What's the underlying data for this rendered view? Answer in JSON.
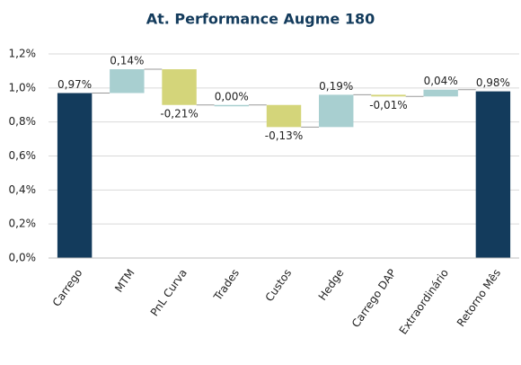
{
  "chart_data": {
    "type": "waterfall",
    "title": "At. Performance Augme 180",
    "categories": [
      "Carrego",
      "MTM",
      "PnL Curva",
      "Trades",
      "Custos",
      "Hedge",
      "Carrego DAP",
      "Extraordinário",
      "Retorno Mês"
    ],
    "values": [
      0.97,
      0.14,
      -0.21,
      0.0,
      -0.13,
      0.19,
      -0.01,
      0.04,
      0.98
    ],
    "value_labels": [
      "0,97%",
      "0,14%",
      "-0,21%",
      "0,00%",
      "-0,13%",
      "0,19%",
      "-0,01%",
      "0,04%",
      "0,98%"
    ],
    "totals": [
      true,
      false,
      false,
      false,
      false,
      false,
      false,
      false,
      true
    ],
    "colors": {
      "increase": "#a8cfd0",
      "decrease": "#d4d57a",
      "total": "#133b5c"
    },
    "ylim": [
      0,
      1.2
    ],
    "yticks": [
      {
        "value": 0,
        "label": "0,0%"
      },
      {
        "value": 0.2,
        "label": "0,2%"
      },
      {
        "value": 0.4,
        "label": "0,4%"
      },
      {
        "value": 0.6,
        "label": "0,6%"
      },
      {
        "value": 0.8,
        "label": "0,8%"
      },
      {
        "value": 1.0,
        "label": "1,0%"
      },
      {
        "value": 1.2,
        "label": "1,2%"
      }
    ],
    "grid": true
  }
}
